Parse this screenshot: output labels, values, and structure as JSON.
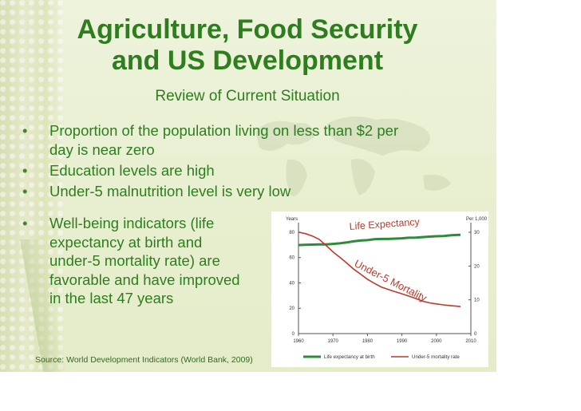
{
  "slide": {
    "title_line1": "Agriculture, Food Security",
    "title_line2": "and US Development",
    "subtitle": "Review of Current Situation",
    "bullets": [
      "Proportion of the population living on less than $2 per day is near zero",
      "Education levels are high",
      "Under-5 malnutrition level is very low",
      "Well-being indicators (life expectancy at birth and under-5 mortality rate) are favorable and have improved in the last 47 years"
    ],
    "bullet_4_lines": [
      "Well-being indicators (life",
      "expectancy at birth and",
      "under-5 mortality rate) are",
      "favorable and have improved",
      "in the last 47 years"
    ],
    "bullet_1_lines": [
      "Proportion of the population living on less than $2 per",
      "day is near zero"
    ],
    "source": "Source: World Development Indicators (World Bank, 2009)"
  },
  "chart_data": {
    "type": "line",
    "title": "",
    "left_axis_label": "Years",
    "right_axis_label": "Per 1,000",
    "x_ticks": [
      1960,
      1970,
      1980,
      1990,
      2000,
      2010
    ],
    "left_ticks": [
      0,
      20,
      40,
      60,
      80
    ],
    "right_ticks": [
      0,
      10,
      20,
      30
    ],
    "xlim": [
      1960,
      2010
    ],
    "left_ylim": [
      0,
      85
    ],
    "right_ylim": [
      0,
      31.9
    ],
    "annotations": [
      "Life Expectancy",
      "Under-5 Mortality"
    ],
    "legend_position": "bottom",
    "series": [
      {
        "name": "Life expectancy at birth",
        "axis": "left",
        "color": "#2e8b3a",
        "x": [
          1960,
          1962,
          1964,
          1966,
          1968,
          1970,
          1972,
          1974,
          1976,
          1978,
          1980,
          1982,
          1984,
          1986,
          1988,
          1990,
          1992,
          1994,
          1996,
          1998,
          2000,
          2002,
          2004,
          2006,
          2007
        ],
        "values": [
          69.8,
          70.1,
          70.2,
          70.3,
          70.4,
          70.8,
          71.2,
          71.9,
          72.8,
          73.4,
          73.7,
          74.4,
          74.7,
          74.7,
          74.9,
          75.2,
          75.6,
          75.7,
          76.1,
          76.5,
          76.8,
          77.0,
          77.5,
          77.8,
          77.9
        ]
      },
      {
        "name": "Under-5 mortality rate",
        "axis": "right",
        "color": "#c0392b",
        "x": [
          1960,
          1962,
          1964,
          1966,
          1968,
          1970,
          1972,
          1974,
          1976,
          1978,
          1980,
          1982,
          1984,
          1986,
          1988,
          1990,
          1992,
          1994,
          1996,
          1998,
          2000,
          2002,
          2004,
          2006,
          2007
        ],
        "values": [
          30,
          29.6,
          28.9,
          27.9,
          26.1,
          24.2,
          22.6,
          20.9,
          19.1,
          17.6,
          16.1,
          14.9,
          13.8,
          13.1,
          12.4,
          11.8,
          11.1,
          10.4,
          9.6,
          9.1,
          8.8,
          8.5,
          8.3,
          8.1,
          8.0
        ]
      }
    ]
  }
}
